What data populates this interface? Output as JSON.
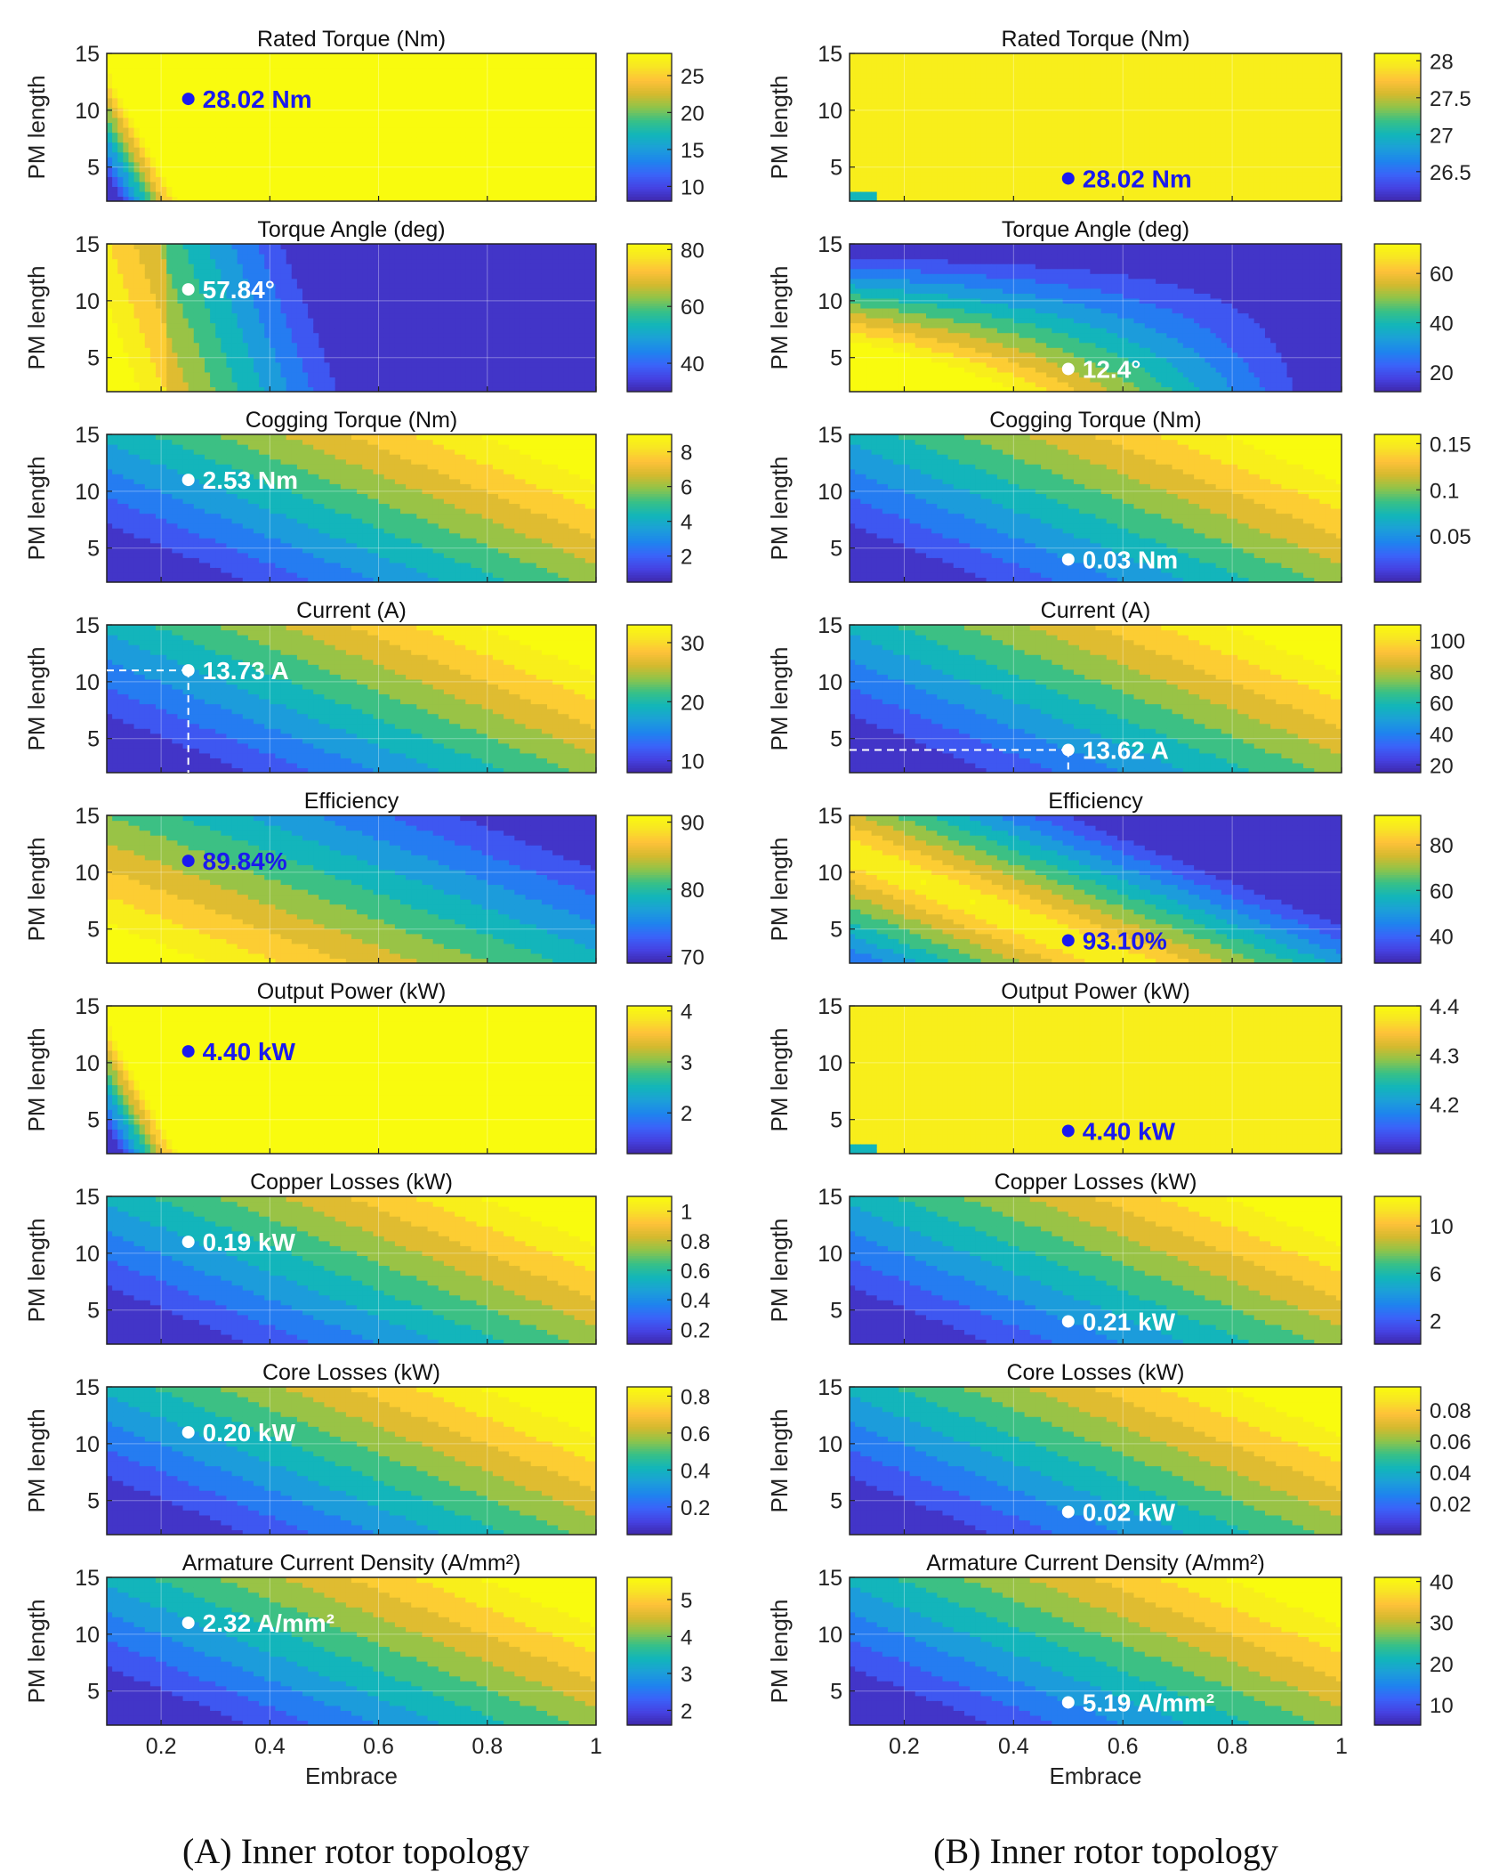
{
  "captions": {
    "a": "(A) Inner rotor topology",
    "b": "(B) Inner rotor topology"
  },
  "colors": {
    "colormap": [
      "#3e26a8",
      "#4542e2",
      "#3a63f9",
      "#1e84ee",
      "#1ca0d8",
      "#12b6b9",
      "#38c087",
      "#8fc44a",
      "#d4ba2e",
      "#fec13a",
      "#f8e425",
      "#f9fb0e"
    ],
    "marker_blue": "#1a1aee",
    "marker_white": "#ffffff",
    "contour_line": "#111111"
  },
  "chart_data": [
    {
      "type": "heatmap",
      "panel": "A1",
      "title": "Rated Torque (Nm)",
      "ylabel": "PM length",
      "xlabel": "",
      "xlim": [
        0.1,
        1
      ],
      "ylim": [
        2,
        15
      ],
      "yticks": [
        5,
        10,
        15
      ],
      "xticks": [
        0.2,
        0.4,
        0.6,
        0.8,
        1
      ],
      "show_xticklabels": false,
      "clim": [
        8,
        28
      ],
      "cticks": [
        10,
        15,
        20,
        25
      ],
      "pattern": "knee",
      "marker": {
        "x": 0.25,
        "y": 11,
        "label": "28.02 Nm",
        "color": "blue"
      }
    },
    {
      "type": "heatmap",
      "panel": "A2",
      "title": "Torque Angle (deg)",
      "ylabel": "PM length",
      "xlabel": "",
      "xlim": [
        0.1,
        1
      ],
      "ylim": [
        2,
        15
      ],
      "yticks": [
        5,
        10,
        15
      ],
      "xticks": [
        0.2,
        0.4,
        0.6,
        0.8,
        1
      ],
      "show_xticklabels": false,
      "clim": [
        30,
        82
      ],
      "cticks": [
        40,
        60,
        80
      ],
      "pattern": "decreasing",
      "marker": {
        "x": 0.25,
        "y": 11,
        "label": "57.84°",
        "color": "white"
      }
    },
    {
      "type": "heatmap",
      "panel": "A3",
      "title": "Cogging Torque (Nm)",
      "ylabel": "PM length",
      "xlabel": "",
      "xlim": [
        0.1,
        1
      ],
      "ylim": [
        2,
        15
      ],
      "yticks": [
        5,
        10,
        15
      ],
      "xticks": [
        0.2,
        0.4,
        0.6,
        0.8,
        1
      ],
      "show_xticklabels": false,
      "clim": [
        0.5,
        9
      ],
      "cticks": [
        2,
        4,
        6,
        8
      ],
      "pattern": "diagonal",
      "marker": {
        "x": 0.25,
        "y": 11,
        "label": "2.53 Nm",
        "color": "white"
      }
    },
    {
      "type": "heatmap",
      "panel": "A4",
      "title": "Current (A)",
      "ylabel": "PM length",
      "xlabel": "",
      "xlim": [
        0.1,
        1
      ],
      "ylim": [
        2,
        15
      ],
      "yticks": [
        5,
        10,
        15
      ],
      "xticks": [
        0.2,
        0.4,
        0.6,
        0.8,
        1
      ],
      "show_xticklabels": false,
      "clim": [
        8,
        33
      ],
      "cticks": [
        10,
        20,
        30
      ],
      "pattern": "diagonal",
      "marker": {
        "x": 0.25,
        "y": 11,
        "label": "13.73 A",
        "color": "white"
      },
      "crosshair": true
    },
    {
      "type": "heatmap",
      "panel": "A5",
      "title": "Efficiency",
      "ylabel": "PM length",
      "xlabel": "",
      "xlim": [
        0.1,
        1
      ],
      "ylim": [
        2,
        15
      ],
      "yticks": [
        5,
        10,
        15
      ],
      "xticks": [
        0.2,
        0.4,
        0.6,
        0.8,
        1
      ],
      "show_xticklabels": false,
      "clim": [
        69,
        91
      ],
      "cticks": [
        70,
        80,
        90
      ],
      "pattern": "inverse",
      "marker": {
        "x": 0.25,
        "y": 11,
        "label": "89.84%",
        "color": "blue"
      }
    },
    {
      "type": "heatmap",
      "panel": "A6",
      "title": "Output Power (kW)",
      "ylabel": "PM length",
      "xlabel": "",
      "xlim": [
        0.1,
        1
      ],
      "ylim": [
        2,
        15
      ],
      "yticks": [
        5,
        10,
        15
      ],
      "xticks": [
        0.2,
        0.4,
        0.6,
        0.8,
        1
      ],
      "show_xticklabels": false,
      "clim": [
        1.2,
        4.1
      ],
      "cticks": [
        2,
        3,
        4
      ],
      "pattern": "knee",
      "marker": {
        "x": 0.25,
        "y": 11,
        "label": "4.40 kW",
        "color": "blue"
      }
    },
    {
      "type": "heatmap",
      "panel": "A7",
      "title": "Copper Losses (kW)",
      "ylabel": "PM length",
      "xlabel": "",
      "xlim": [
        0.1,
        1
      ],
      "ylim": [
        2,
        15
      ],
      "yticks": [
        5,
        10,
        15
      ],
      "xticks": [
        0.2,
        0.4,
        0.6,
        0.8,
        1
      ],
      "show_xticklabels": false,
      "clim": [
        0.1,
        1.1
      ],
      "cticks": [
        0.2,
        0.4,
        0.6,
        0.8,
        1
      ],
      "pattern": "diagonal",
      "marker": {
        "x": 0.25,
        "y": 11,
        "label": "0.19 kW",
        "color": "white"
      }
    },
    {
      "type": "heatmap",
      "panel": "A8",
      "title": "Core Losses (kW)",
      "ylabel": "PM length",
      "xlabel": "",
      "xlim": [
        0.1,
        1
      ],
      "ylim": [
        2,
        15
      ],
      "yticks": [
        5,
        10,
        15
      ],
      "xticks": [
        0.2,
        0.4,
        0.6,
        0.8,
        1
      ],
      "show_xticklabels": false,
      "clim": [
        0.05,
        0.85
      ],
      "cticks": [
        0.2,
        0.4,
        0.6,
        0.8
      ],
      "pattern": "diagonal",
      "marker": {
        "x": 0.25,
        "y": 11,
        "label": "0.20 kW",
        "color": "white"
      }
    },
    {
      "type": "heatmap",
      "panel": "A9",
      "title": "Armature Current Density (A/mm²)",
      "ylabel": "PM length",
      "xlabel": "Embrace",
      "xlim": [
        0.1,
        1
      ],
      "ylim": [
        2,
        15
      ],
      "yticks": [
        5,
        10,
        15
      ],
      "xticks": [
        0.2,
        0.4,
        0.6,
        0.8,
        1
      ],
      "show_xticklabels": true,
      "clim": [
        1.6,
        5.6
      ],
      "cticks": [
        2,
        3,
        4,
        5
      ],
      "pattern": "diagonal",
      "marker": {
        "x": 0.25,
        "y": 11,
        "label": "2.32 A/mm²",
        "color": "white"
      }
    },
    {
      "type": "heatmap",
      "panel": "B1",
      "title": "Rated Torque (Nm)",
      "ylabel": "PM length",
      "xlabel": "",
      "xlim": [
        0.1,
        1
      ],
      "ylim": [
        2,
        15
      ],
      "yticks": [
        5,
        10,
        15
      ],
      "xticks": [
        0.2,
        0.4,
        0.6,
        0.8,
        1
      ],
      "show_xticklabels": false,
      "clim": [
        26.1,
        28.1
      ],
      "cticks": [
        26.5,
        27,
        27.5,
        28
      ],
      "pattern": "flat",
      "marker": {
        "x": 0.5,
        "y": 4,
        "label": "28.02 Nm",
        "color": "blue"
      }
    },
    {
      "type": "heatmap",
      "panel": "B2",
      "title": "Torque Angle (deg)",
      "ylabel": "PM length",
      "xlabel": "",
      "xlim": [
        0.1,
        1
      ],
      "ylim": [
        2,
        15
      ],
      "yticks": [
        5,
        10,
        15
      ],
      "xticks": [
        0.2,
        0.4,
        0.6,
        0.8,
        1
      ],
      "show_xticklabels": false,
      "clim": [
        12,
        72
      ],
      "cticks": [
        20,
        40,
        60
      ],
      "pattern": "corner",
      "marker": {
        "x": 0.5,
        "y": 4,
        "label": "12.4°",
        "color": "white"
      }
    },
    {
      "type": "heatmap",
      "panel": "B3",
      "title": "Cogging Torque (Nm)",
      "ylabel": "PM length",
      "xlabel": "",
      "xlim": [
        0.1,
        1
      ],
      "ylim": [
        2,
        15
      ],
      "yticks": [
        5,
        10,
        15
      ],
      "xticks": [
        0.2,
        0.4,
        0.6,
        0.8,
        1
      ],
      "show_xticklabels": false,
      "clim": [
        0,
        0.16
      ],
      "cticks": [
        0.05,
        0.1,
        0.15
      ],
      "pattern": "diagonal",
      "marker": {
        "x": 0.5,
        "y": 4,
        "label": "0.03 Nm",
        "color": "white"
      }
    },
    {
      "type": "heatmap",
      "panel": "B4",
      "title": "Current (A)",
      "ylabel": "PM length",
      "xlabel": "",
      "xlim": [
        0.1,
        1
      ],
      "ylim": [
        2,
        15
      ],
      "yticks": [
        5,
        10,
        15
      ],
      "xticks": [
        0.2,
        0.4,
        0.6,
        0.8,
        1
      ],
      "show_xticklabels": false,
      "clim": [
        15,
        110
      ],
      "cticks": [
        20,
        40,
        60,
        80,
        100
      ],
      "pattern": "diagonal",
      "marker": {
        "x": 0.5,
        "y": 4,
        "label": "13.62 A",
        "color": "white"
      },
      "crosshair": true
    },
    {
      "type": "heatmap",
      "panel": "B5",
      "title": "Efficiency",
      "ylabel": "PM length",
      "xlabel": "",
      "xlim": [
        0.1,
        1
      ],
      "ylim": [
        2,
        15
      ],
      "yticks": [
        5,
        10,
        15
      ],
      "xticks": [
        0.2,
        0.4,
        0.6,
        0.8,
        1
      ],
      "show_xticklabels": false,
      "clim": [
        28,
        93
      ],
      "cticks": [
        40,
        60,
        80
      ],
      "pattern": "band",
      "marker": {
        "x": 0.5,
        "y": 4,
        "label": "93.10%",
        "color": "blue"
      }
    },
    {
      "type": "heatmap",
      "panel": "B6",
      "title": "Output Power (kW)",
      "ylabel": "PM length",
      "xlabel": "",
      "xlim": [
        0.1,
        1
      ],
      "ylim": [
        2,
        15
      ],
      "yticks": [
        5,
        10,
        15
      ],
      "xticks": [
        0.2,
        0.4,
        0.6,
        0.8,
        1
      ],
      "show_xticklabels": false,
      "clim": [
        4.1,
        4.4
      ],
      "cticks": [
        4.2,
        4.3,
        4.4
      ],
      "pattern": "flat",
      "marker": {
        "x": 0.5,
        "y": 4,
        "label": "4.40 kW",
        "color": "blue"
      }
    },
    {
      "type": "heatmap",
      "panel": "B7",
      "title": "Copper Losses (kW)",
      "ylabel": "PM length",
      "xlabel": "",
      "xlim": [
        0.1,
        1
      ],
      "ylim": [
        2,
        15
      ],
      "yticks": [
        5,
        10,
        15
      ],
      "xticks": [
        0.2,
        0.4,
        0.6,
        0.8,
        1
      ],
      "show_xticklabels": false,
      "clim": [
        0,
        12.5
      ],
      "cticks": [
        2,
        6,
        10
      ],
      "pattern": "diagonal",
      "marker": {
        "x": 0.5,
        "y": 4,
        "label": "0.21 kW",
        "color": "white"
      }
    },
    {
      "type": "heatmap",
      "panel": "B8",
      "title": "Core Losses (kW)",
      "ylabel": "PM length",
      "xlabel": "",
      "xlim": [
        0.1,
        1
      ],
      "ylim": [
        2,
        15
      ],
      "yticks": [
        5,
        10,
        15
      ],
      "xticks": [
        0.2,
        0.4,
        0.6,
        0.8,
        1
      ],
      "show_xticklabels": false,
      "clim": [
        0,
        0.095
      ],
      "cticks": [
        0.02,
        0.04,
        0.06,
        0.08
      ],
      "pattern": "diagonal",
      "marker": {
        "x": 0.5,
        "y": 4,
        "label": "0.02 kW",
        "color": "white"
      }
    },
    {
      "type": "heatmap",
      "panel": "B9",
      "title": "Armature Current Density (A/mm²)",
      "ylabel": "PM length",
      "xlabel": "Embrace",
      "xlim": [
        0.1,
        1
      ],
      "ylim": [
        2,
        15
      ],
      "yticks": [
        5,
        10,
        15
      ],
      "xticks": [
        0.2,
        0.4,
        0.6,
        0.8,
        1
      ],
      "show_xticklabels": true,
      "clim": [
        5,
        41
      ],
      "cticks": [
        10,
        20,
        30,
        40
      ],
      "pattern": "diagonal",
      "marker": {
        "x": 0.5,
        "y": 4,
        "label": "5.19 A/mm²",
        "color": "white"
      }
    }
  ]
}
